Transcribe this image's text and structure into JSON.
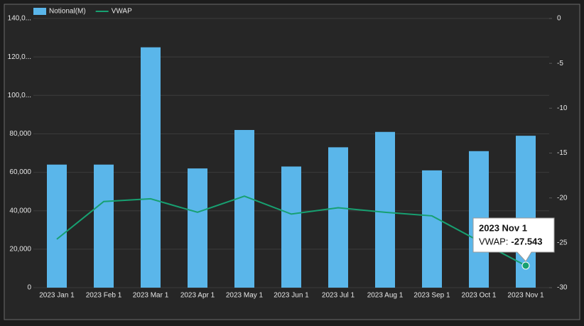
{
  "chart_data": {
    "type": "bar-line",
    "categories": [
      "2023 Jan 1",
      "2023 Feb 1",
      "2023 Mar 1",
      "2023 Apr 1",
      "2023 May 1",
      "2023 Jun 1",
      "2023 Jul 1",
      "2023 Aug 1",
      "2023 Sep 1",
      "2023 Oct 1",
      "2023 Nov 1"
    ],
    "series": [
      {
        "name": "Notional(M)",
        "color": "#5ab6ea",
        "type": "bar",
        "values": [
          64000,
          64000,
          125000,
          62000,
          82000,
          63000,
          73000,
          81000,
          61000,
          71000,
          79000
        ]
      },
      {
        "name": "VWAP",
        "color": "#17a071",
        "type": "line",
        "axis": "y2",
        "values": [
          -24.6,
          -20.4,
          -20.1,
          -21.6,
          -19.8,
          -21.8,
          -21.1,
          -21.6,
          -22.0,
          -24.8,
          -27.543
        ]
      }
    ],
    "ylim": [
      0,
      140000
    ],
    "yticks": [
      0,
      {
        "value": 20000,
        "label": "20,000"
      },
      {
        "value": 40000,
        "label": "40,000"
      },
      {
        "value": 60000,
        "label": "60,000"
      },
      {
        "value": 80000,
        "label": "80,000"
      },
      {
        "value": 100000,
        "label": "100,0..."
      },
      {
        "value": 120000,
        "label": "120,0..."
      },
      {
        "value": 140000,
        "label": "140,0..."
      }
    ],
    "y2lim": [
      -30,
      0
    ],
    "y2ticks": [
      -30,
      -25,
      -20,
      -15,
      -10,
      -5,
      0
    ],
    "grid": true,
    "legend": "top-left",
    "tooltip": {
      "index": 10,
      "label": "VWAP:"
    }
  }
}
